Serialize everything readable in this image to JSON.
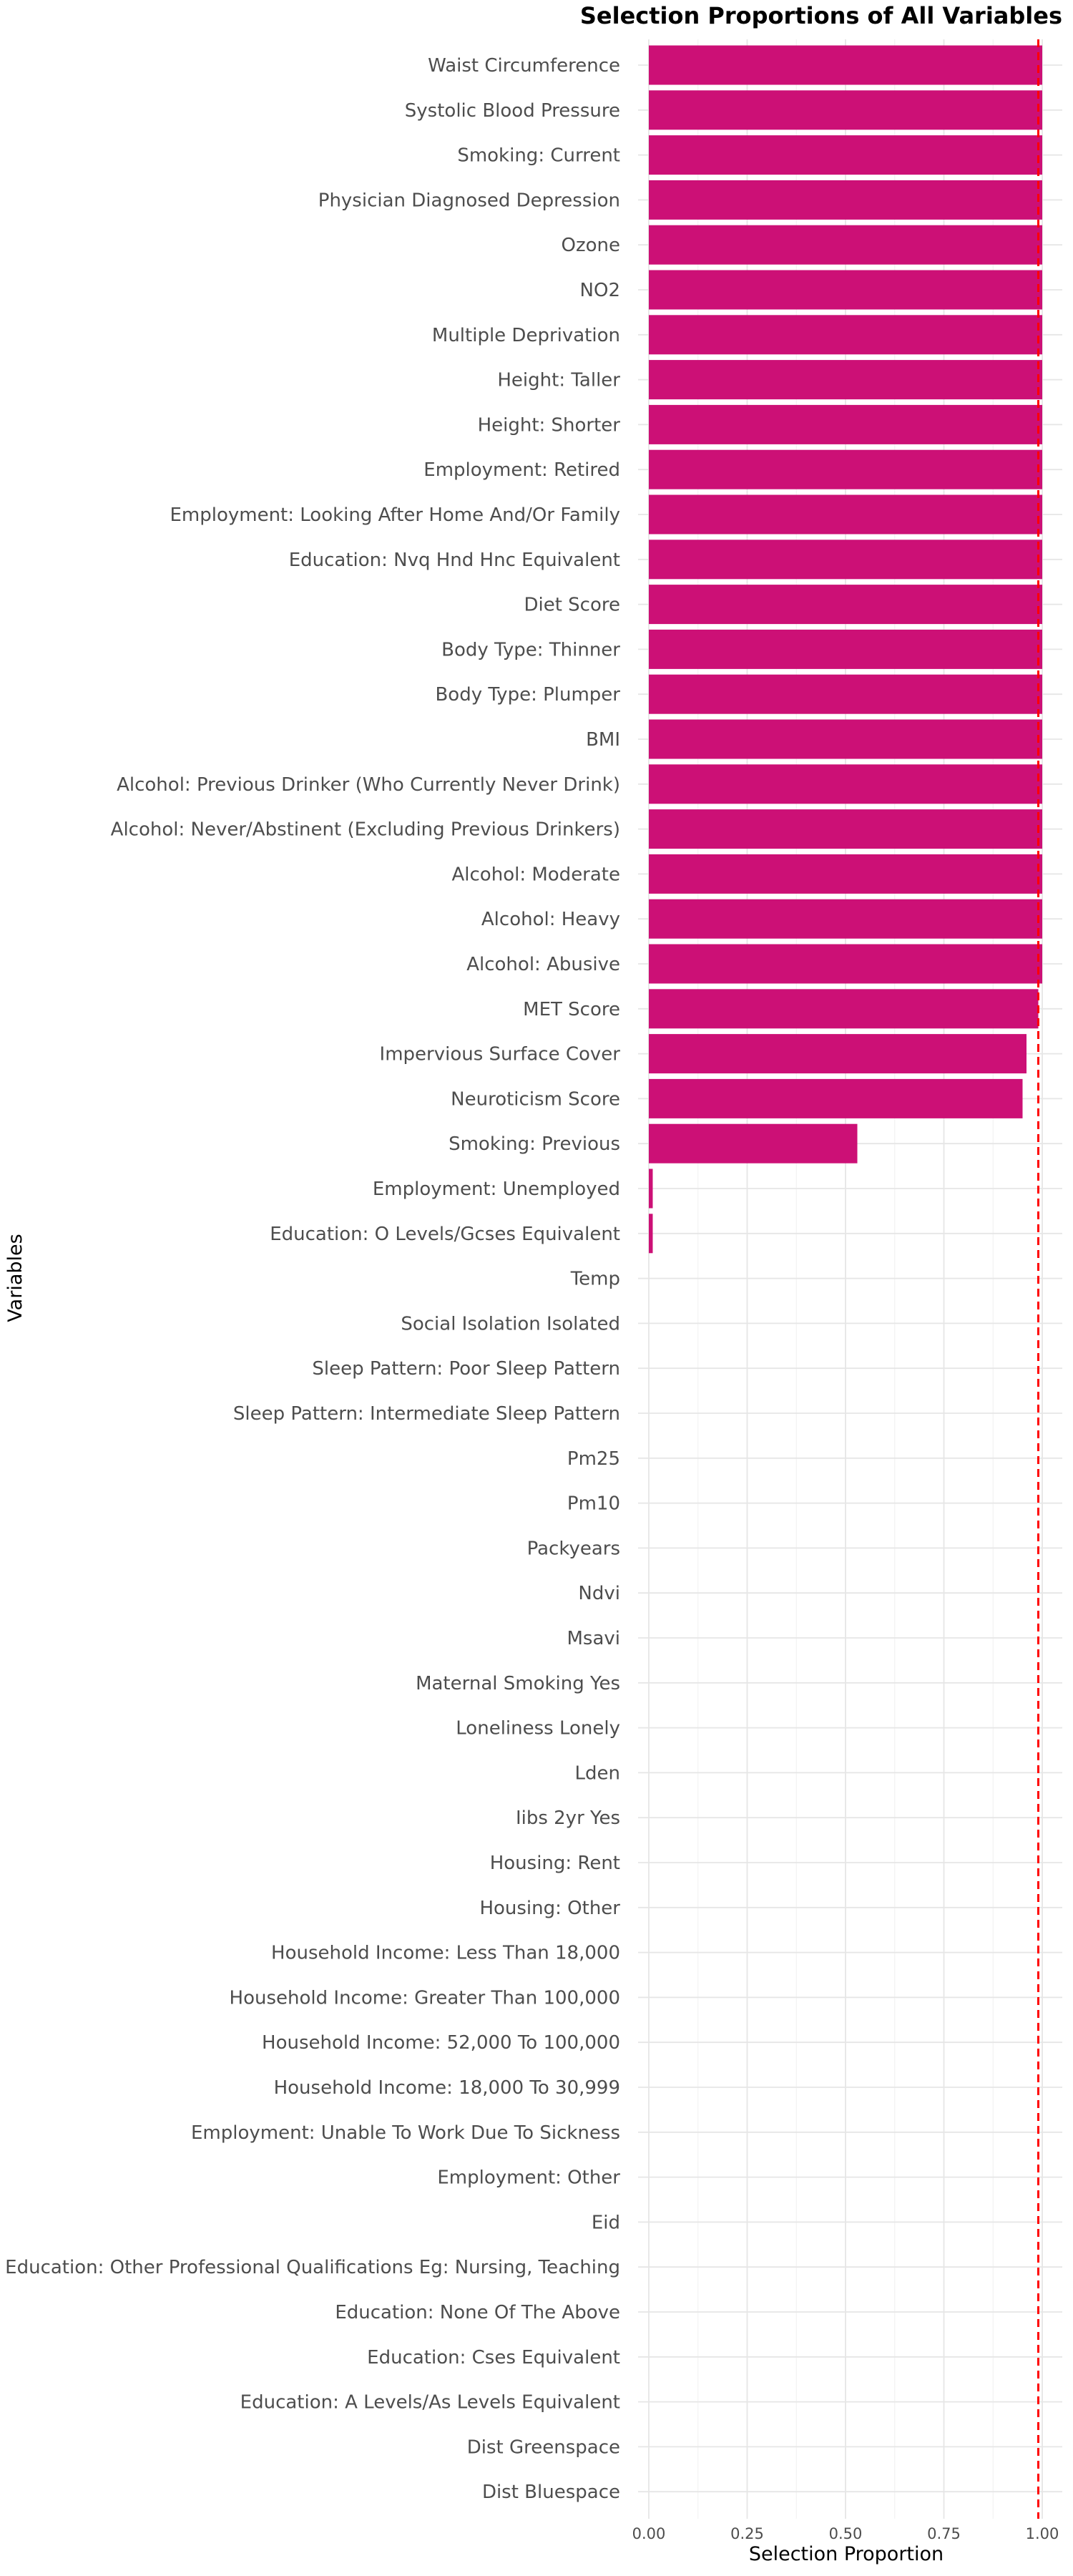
{
  "chart_data": {
    "type": "bar",
    "orientation": "horizontal",
    "title": "Selection Proportions of All Variables",
    "xlabel": "Selection Proportion",
    "ylabel": "Variables",
    "xlim": [
      0,
      1
    ],
    "xticks": [
      0,
      0.25,
      0.5,
      0.75,
      1
    ],
    "xtick_labels": [
      "0.00",
      "0.25",
      "0.50",
      "0.75",
      "1.00"
    ],
    "threshold_line": 0.99,
    "grid": true,
    "categories": [
      "Waist Circumference",
      "Systolic Blood Pressure",
      "Smoking: Current",
      "Physician Diagnosed Depression",
      "Ozone",
      "NO2",
      "Multiple Deprivation",
      "Height: Taller",
      "Height: Shorter",
      "Employment: Retired",
      "Employment: Looking After Home And/Or Family",
      "Education: Nvq Hnd Hnc Equivalent",
      "Diet Score",
      "Body Type: Thinner",
      "Body Type: Plumper",
      "BMI",
      "Alcohol: Previous Drinker (Who Currently Never Drink)",
      "Alcohol: Never/Abstinent (Excluding Previous Drinkers)",
      "Alcohol: Moderate",
      "Alcohol: Heavy",
      "Alcohol: Abusive",
      "MET Score",
      "Impervious Surface Cover",
      "Neuroticism Score",
      "Smoking: Previous",
      "Employment: Unemployed",
      "Education: O Levels/Gcses Equivalent",
      "Temp",
      "Social Isolation Isolated",
      "Sleep Pattern: Poor Sleep Pattern",
      "Sleep Pattern: Intermediate Sleep Pattern",
      "Pm25",
      "Pm10",
      "Packyears",
      "Ndvi",
      "Msavi",
      "Maternal Smoking Yes",
      "Loneliness Lonely",
      "Lden",
      "Iibs 2yr Yes",
      "Housing: Rent",
      "Housing: Other",
      "Household Income: Less Than 18,000",
      "Household Income: Greater Than 100,000",
      "Household Income: 52,000 To 100,000",
      "Household Income: 18,000 To 30,999",
      "Employment: Unable To Work Due To Sickness",
      "Employment: Other",
      "Eid",
      "Education: Other Professional Qualifications Eg: Nursing, Teaching",
      "Education: None Of The Above",
      "Education: Cses Equivalent",
      "Education: A Levels/As Levels Equivalent",
      "Dist Greenspace",
      "Dist Bluespace"
    ],
    "values": [
      1,
      1,
      1,
      1,
      1,
      1,
      1,
      1,
      1,
      1,
      1,
      1,
      1,
      1,
      1,
      1,
      1,
      1,
      1,
      1,
      1,
      0.99,
      0.96,
      0.95,
      0.53,
      0.01,
      0.01,
      0,
      0,
      0,
      0,
      0,
      0,
      0,
      0,
      0,
      0,
      0,
      0,
      0,
      0,
      0,
      0,
      0,
      0,
      0,
      0,
      0,
      0,
      0,
      0,
      0,
      0,
      0,
      0
    ],
    "colors": {
      "bar": "#CC1076",
      "threshold": "#FF0000"
    }
  }
}
